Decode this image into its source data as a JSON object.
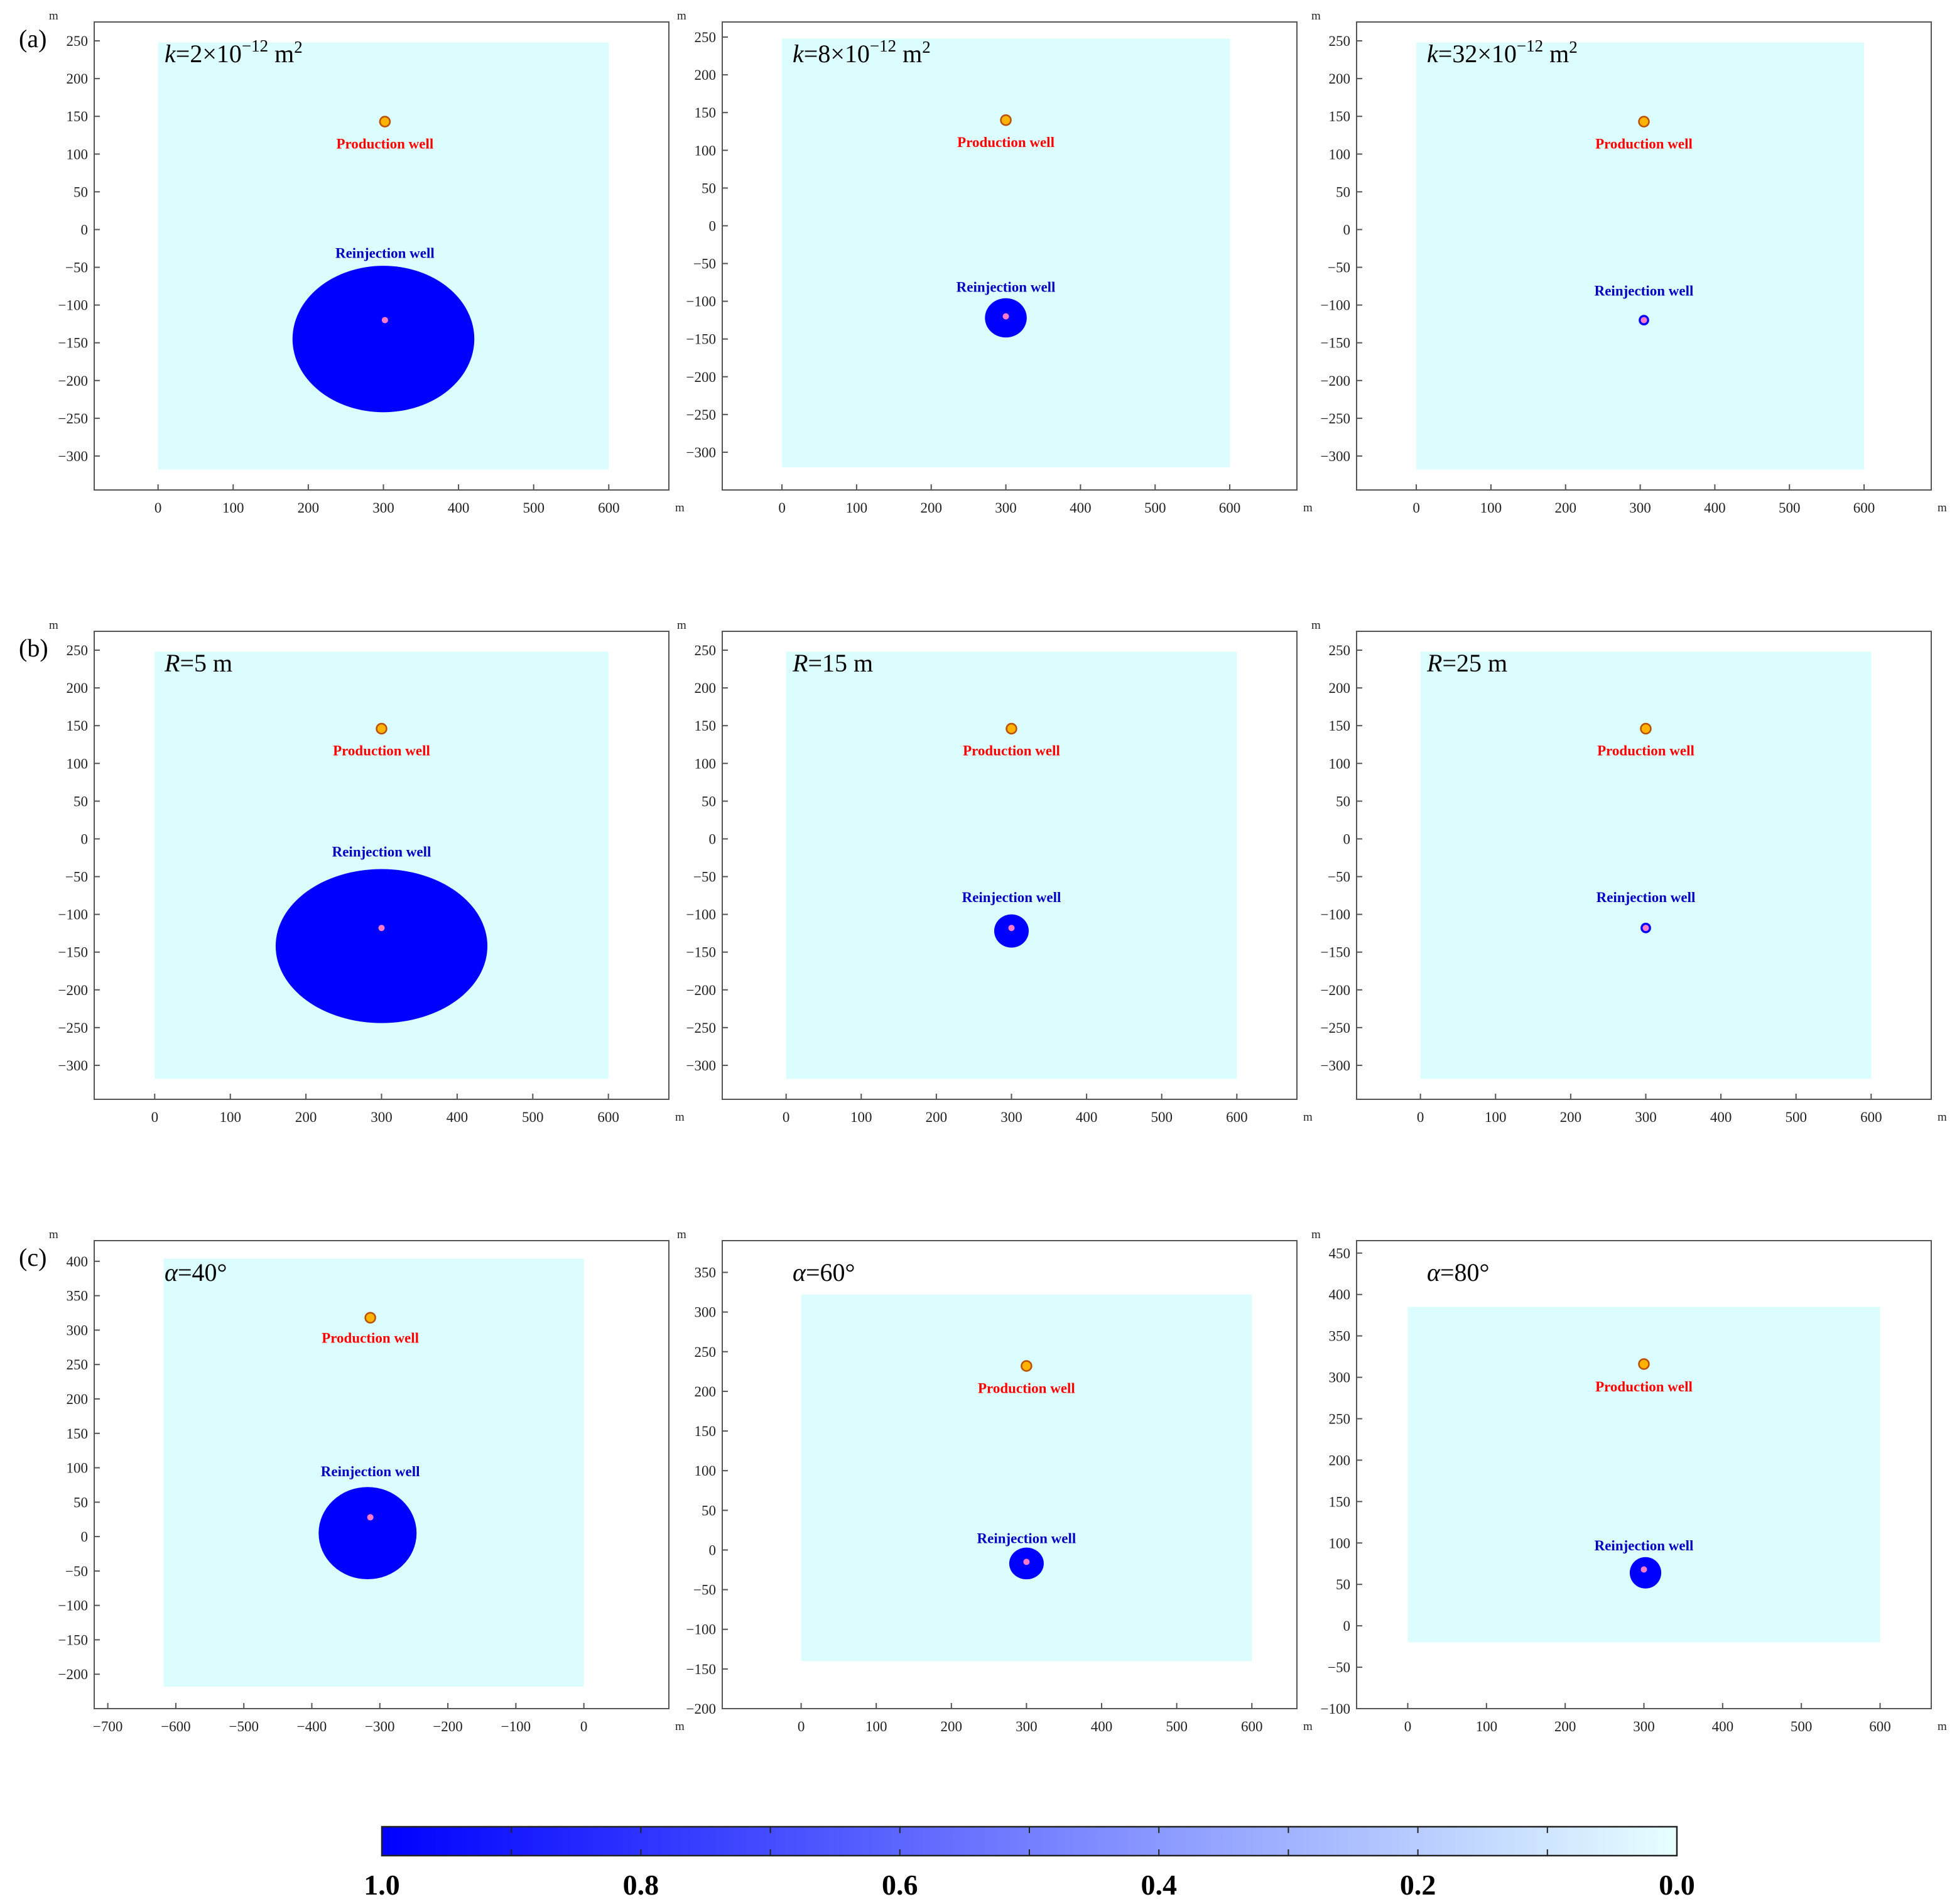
{
  "figure": {
    "row_labels": [
      "(a)",
      "(b)",
      "(c)"
    ],
    "axis_unit": "m"
  },
  "labels": {
    "production": "Production well",
    "reinjection": "Reinjection well"
  },
  "colors": {
    "domain": "#DCFDFD",
    "plume": "#0000FF",
    "production_fill": "#FFB300",
    "production_stroke": "#B85000",
    "reinjection_dot": "#FF7BC8",
    "production_text": "#FF0000",
    "reinjection_text": "#0000C0",
    "colorbar_low": "#E6FFFF",
    "colorbar_high": "#0000FF"
  },
  "chart_data": [
    {
      "type": "heatmap",
      "row": "(a)",
      "col": 0,
      "annotation": {
        "var": "k",
        "op": "=2×10",
        "sup": "−12",
        "unit": " m",
        "unit_sup": "2"
      },
      "xlim": [
        -85,
        680
      ],
      "ylim": [
        -345,
        275
      ],
      "xticks": [
        0,
        100,
        200,
        300,
        400,
        500,
        600
      ],
      "yticks": [
        250,
        200,
        150,
        100,
        50,
        0,
        -50,
        -100,
        -150,
        -200,
        -250,
        -300
      ],
      "xtick_labels": [
        "0",
        "100",
        "200",
        "300",
        "400",
        "500",
        "600"
      ],
      "ytick_labels": [
        "250",
        "200",
        "150",
        "100",
        "50",
        "0",
        "−50",
        "−100",
        "−150",
        "−200",
        "−250",
        "−300"
      ],
      "domain": {
        "x": [
          0,
          600
        ],
        "y": [
          -318,
          248
        ]
      },
      "production_well": {
        "x": 302,
        "y": 143
      },
      "reinjection_well": {
        "x": 302,
        "y": -120
      },
      "plume": {
        "cx": 300,
        "cy": -145,
        "rx": 121,
        "ry": 97
      },
      "label_y": {
        "production": 115,
        "reinjection": -30
      }
    },
    {
      "type": "heatmap",
      "row": "(a)",
      "col": 1,
      "annotation": {
        "var": "k",
        "op": "=8×10",
        "sup": "−12",
        "unit": " m",
        "unit_sup": "2"
      },
      "xlim": [
        -80,
        690
      ],
      "ylim": [
        -350,
        270
      ],
      "xticks": [
        0,
        100,
        200,
        300,
        400,
        500,
        600
      ],
      "yticks": [
        250,
        200,
        150,
        100,
        50,
        0,
        -50,
        -100,
        -150,
        -200,
        -250,
        -300
      ],
      "xtick_labels": [
        "0",
        "100",
        "200",
        "300",
        "400",
        "500",
        "600"
      ],
      "ytick_labels": [
        "250",
        "200",
        "150",
        "100",
        "50",
        "0",
        "−50",
        "−100",
        "−150",
        "−200",
        "−250",
        "−300"
      ],
      "domain": {
        "x": [
          0,
          600
        ],
        "y": [
          -320,
          248
        ]
      },
      "production_well": {
        "x": 300,
        "y": 140
      },
      "reinjection_well": {
        "x": 300,
        "y": -120
      },
      "plume": {
        "cx": 300,
        "cy": -122,
        "rx": 28,
        "ry": 26
      },
      "label_y": {
        "production": 112,
        "reinjection": -80
      }
    },
    {
      "type": "heatmap",
      "row": "(a)",
      "col": 2,
      "annotation": {
        "var": "k",
        "op": "=32×10",
        "sup": "−12",
        "unit": " m",
        "unit_sup": "2"
      },
      "xlim": [
        -80,
        690
      ],
      "ylim": [
        -345,
        275
      ],
      "xticks": [
        0,
        100,
        200,
        300,
        400,
        500,
        600
      ],
      "yticks": [
        250,
        200,
        150,
        100,
        50,
        0,
        -50,
        -100,
        -150,
        -200,
        -250,
        -300
      ],
      "xtick_labels": [
        "0",
        "100",
        "200",
        "300",
        "400",
        "500",
        "600"
      ],
      "ytick_labels": [
        "250",
        "200",
        "150",
        "100",
        "50",
        "0",
        "−50",
        "−100",
        "−150",
        "−200",
        "−250",
        "−300"
      ],
      "domain": {
        "x": [
          0,
          600
        ],
        "y": [
          -318,
          248
        ]
      },
      "production_well": {
        "x": 305,
        "y": 143
      },
      "reinjection_well": {
        "x": 305,
        "y": -120
      },
      "plume": {
        "cx": 305,
        "cy": -120,
        "rx": 7,
        "ry": 7
      },
      "label_y": {
        "production": 115,
        "reinjection": -80
      }
    },
    {
      "type": "heatmap",
      "row": "(b)",
      "col": 0,
      "annotation": {
        "var": "R",
        "op": "=5 m",
        "sup": "",
        "unit": "",
        "unit_sup": ""
      },
      "xlim": [
        -80,
        680
      ],
      "ylim": [
        -345,
        275
      ],
      "xticks": [
        0,
        100,
        200,
        300,
        400,
        500,
        600
      ],
      "yticks": [
        250,
        200,
        150,
        100,
        50,
        0,
        -50,
        -100,
        -150,
        -200,
        -250,
        -300
      ],
      "xtick_labels": [
        "0",
        "100",
        "200",
        "300",
        "400",
        "500",
        "600"
      ],
      "ytick_labels": [
        "250",
        "200",
        "150",
        "100",
        "50",
        "0",
        "−50",
        "−100",
        "−150",
        "−200",
        "−250",
        "−300"
      ],
      "domain": {
        "x": [
          0,
          600
        ],
        "y": [
          -318,
          248
        ]
      },
      "production_well": {
        "x": 300,
        "y": 146
      },
      "reinjection_well": {
        "x": 300,
        "y": -118
      },
      "plume": {
        "cx": 300,
        "cy": -142,
        "rx": 140,
        "ry": 102
      },
      "label_y": {
        "production": 118,
        "reinjection": -16
      }
    },
    {
      "type": "heatmap",
      "row": "(b)",
      "col": 1,
      "annotation": {
        "var": "R",
        "op": "=15 m",
        "sup": "",
        "unit": "",
        "unit_sup": ""
      },
      "xlim": [
        -85,
        680
      ],
      "ylim": [
        -345,
        275
      ],
      "xticks": [
        0,
        100,
        200,
        300,
        400,
        500,
        600
      ],
      "yticks": [
        250,
        200,
        150,
        100,
        50,
        0,
        -50,
        -100,
        -150,
        -200,
        -250,
        -300
      ],
      "xtick_labels": [
        "0",
        "100",
        "200",
        "300",
        "400",
        "500",
        "600"
      ],
      "ytick_labels": [
        "250",
        "200",
        "150",
        "100",
        "50",
        "0",
        "−50",
        "−100",
        "−150",
        "−200",
        "−250",
        "−300"
      ],
      "domain": {
        "x": [
          0,
          600
        ],
        "y": [
          -318,
          248
        ]
      },
      "production_well": {
        "x": 300,
        "y": 146
      },
      "reinjection_well": {
        "x": 300,
        "y": -118
      },
      "plume": {
        "cx": 300,
        "cy": -122,
        "rx": 23,
        "ry": 22
      },
      "label_y": {
        "production": 118,
        "reinjection": -76
      }
    },
    {
      "type": "heatmap",
      "row": "(b)",
      "col": 2,
      "annotation": {
        "var": "R",
        "op": "=25 m",
        "sup": "",
        "unit": "",
        "unit_sup": ""
      },
      "xlim": [
        -85,
        680
      ],
      "ylim": [
        -345,
        275
      ],
      "xticks": [
        0,
        100,
        200,
        300,
        400,
        500,
        600
      ],
      "yticks": [
        250,
        200,
        150,
        100,
        50,
        0,
        -50,
        -100,
        -150,
        -200,
        -250,
        -300
      ],
      "xtick_labels": [
        "0",
        "100",
        "200",
        "300",
        "400",
        "500",
        "600"
      ],
      "ytick_labels": [
        "250",
        "200",
        "150",
        "100",
        "50",
        "0",
        "−50",
        "−100",
        "−150",
        "−200",
        "−250",
        "−300"
      ],
      "domain": {
        "x": [
          0,
          600
        ],
        "y": [
          -318,
          248
        ]
      },
      "production_well": {
        "x": 300,
        "y": 146
      },
      "reinjection_well": {
        "x": 300,
        "y": -118
      },
      "plume": {
        "cx": 300,
        "cy": -118,
        "rx": 7,
        "ry": 7
      },
      "label_y": {
        "production": 118,
        "reinjection": -76
      }
    },
    {
      "type": "heatmap",
      "row": "(c)",
      "col": 0,
      "annotation": {
        "var": "α",
        "op": "=40°",
        "sup": "",
        "unit": "",
        "unit_sup": ""
      },
      "xlim": [
        -720,
        125
      ],
      "ylim": [
        -250,
        430
      ],
      "xticks": [
        -700,
        -600,
        -500,
        -400,
        -300,
        -200,
        -100,
        0
      ],
      "yticks": [
        400,
        350,
        300,
        250,
        200,
        150,
        100,
        50,
        0,
        -50,
        -100,
        -150,
        -200
      ],
      "xtick_labels": [
        "−700",
        "−600",
        "−500",
        "−400",
        "−300",
        "−200",
        "−100",
        "0"
      ],
      "ytick_labels": [
        "400",
        "350",
        "300",
        "250",
        "200",
        "150",
        "100",
        "50",
        "0",
        "−50",
        "−100",
        "−150",
        "−200"
      ],
      "domain": {
        "x": [
          -618,
          0
        ],
        "y": [
          -218,
          404
        ]
      },
      "production_well": {
        "x": -314,
        "y": 318
      },
      "reinjection_well": {
        "x": -314,
        "y": 28
      },
      "plume": {
        "cx": -318,
        "cy": 5,
        "rx": 72,
        "ry": 67
      },
      "label_y": {
        "production": 290,
        "reinjection": 96
      }
    },
    {
      "type": "heatmap",
      "row": "(c)",
      "col": 1,
      "annotation": {
        "var": "α",
        "op": "=60°",
        "sup": "",
        "unit": "",
        "unit_sup": ""
      },
      "xlim": [
        -105,
        660
      ],
      "ylim": [
        -200,
        390
      ],
      "xticks": [
        0,
        100,
        200,
        300,
        400,
        500,
        600
      ],
      "yticks": [
        350,
        300,
        250,
        200,
        150,
        100,
        50,
        0,
        -50,
        -100,
        -150,
        -200
      ],
      "xtick_labels": [
        "0",
        "100",
        "200",
        "300",
        "400",
        "500",
        "600"
      ],
      "ytick_labels": [
        "350",
        "300",
        "250",
        "200",
        "150",
        "100",
        "50",
        "0",
        "−50",
        "−100",
        "−150",
        "−200"
      ],
      "domain": {
        "x": [
          0,
          600
        ],
        "y": [
          -140,
          322
        ]
      },
      "production_well": {
        "x": 300,
        "y": 232
      },
      "reinjection_well": {
        "x": 300,
        "y": -15
      },
      "plume": {
        "cx": 300,
        "cy": -17,
        "rx": 23,
        "ry": 20
      },
      "label_y": {
        "production": 205,
        "reinjection": 16
      }
    },
    {
      "type": "heatmap",
      "row": "(c)",
      "col": 2,
      "annotation": {
        "var": "α",
        "op": "=80°",
        "sup": "",
        "unit": "",
        "unit_sup": ""
      },
      "xlim": [
        -65,
        665
      ],
      "ylim": [
        -100,
        465
      ],
      "xticks": [
        0,
        100,
        200,
        300,
        400,
        500,
        600
      ],
      "yticks": [
        450,
        400,
        350,
        300,
        250,
        200,
        150,
        100,
        50,
        0,
        -50,
        -100
      ],
      "xtick_labels": [
        "0",
        "100",
        "200",
        "300",
        "400",
        "500",
        "600"
      ],
      "ytick_labels": [
        "450",
        "400",
        "350",
        "300",
        "250",
        "200",
        "150",
        "100",
        "50",
        "0",
        "−50",
        "−100"
      ],
      "domain": {
        "x": [
          0,
          600
        ],
        "y": [
          -20,
          385
        ]
      },
      "production_well": {
        "x": 300,
        "y": 316
      },
      "reinjection_well": {
        "x": 300,
        "y": 68
      },
      "plume": {
        "cx": 302,
        "cy": 64,
        "rx": 20,
        "ry": 19
      },
      "label_y": {
        "production": 290,
        "reinjection": 98
      }
    }
  ],
  "colorbar": {
    "range": [
      1.0,
      0.0
    ],
    "tick_labels": [
      "1.0",
      "0.8",
      "0.6",
      "0.4",
      "0.2",
      "0.0"
    ],
    "minor_ticks": 10
  }
}
